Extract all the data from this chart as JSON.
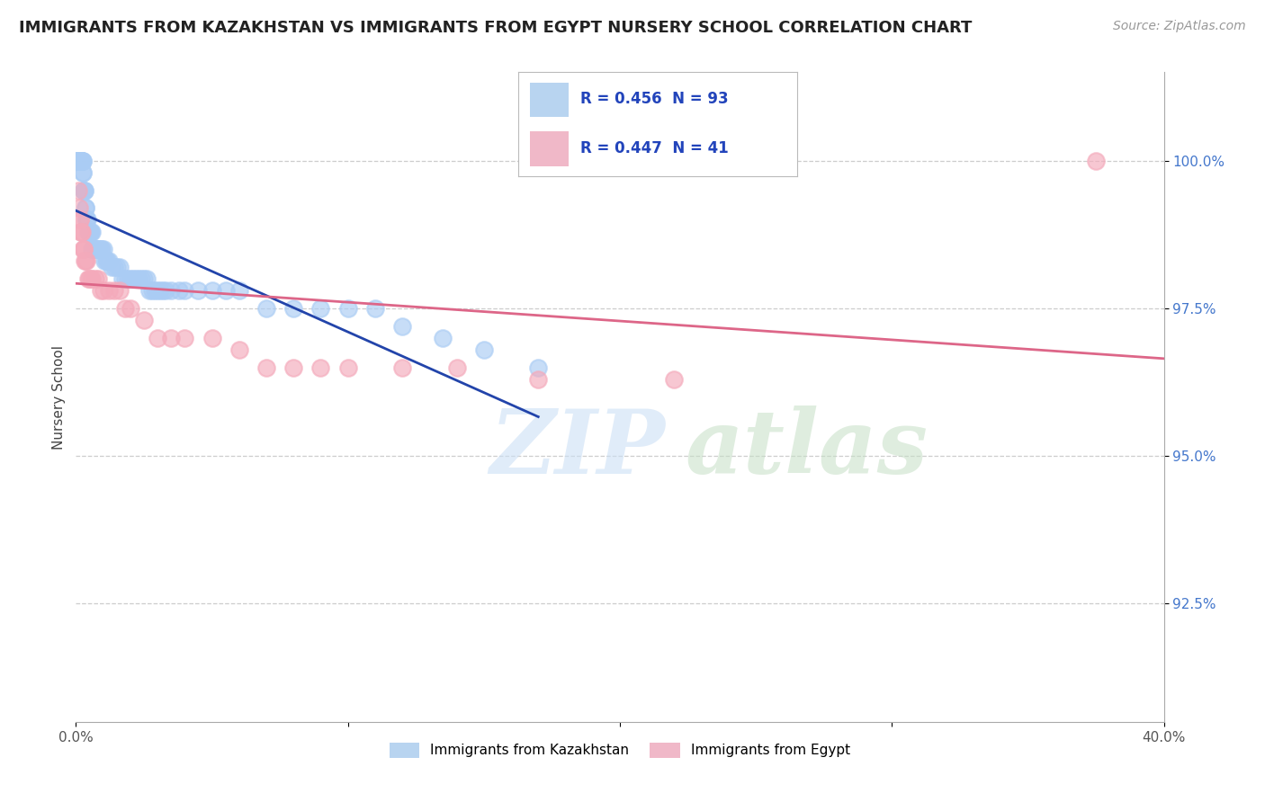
{
  "title": "IMMIGRANTS FROM KAZAKHSTAN VS IMMIGRANTS FROM EGYPT NURSERY SCHOOL CORRELATION CHART",
  "source": "Source: ZipAtlas.com",
  "ylabel": "Nursery School",
  "xlim": [
    0.0,
    40.0
  ],
  "ylim": [
    90.5,
    101.5
  ],
  "yticks": [
    92.5,
    95.0,
    97.5,
    100.0
  ],
  "ytick_labels": [
    "92.5%",
    "95.0%",
    "97.5%",
    "100.0%"
  ],
  "R_kaz": 0.456,
  "N_kaz": 93,
  "R_egy": 0.447,
  "N_egy": 41,
  "color_kaz": "#aaccf4",
  "color_egy": "#f4aabb",
  "line_color_kaz": "#2244aa",
  "line_color_egy": "#dd6688",
  "legend_color_kaz": "#b8d4f0",
  "legend_color_egy": "#f0b8c8",
  "background_color": "#ffffff",
  "grid_color": "#c8c8c8",
  "kaz_x": [
    0.05,
    0.07,
    0.08,
    0.1,
    0.1,
    0.11,
    0.12,
    0.12,
    0.13,
    0.14,
    0.15,
    0.15,
    0.16,
    0.17,
    0.18,
    0.19,
    0.2,
    0.2,
    0.21,
    0.22,
    0.23,
    0.24,
    0.25,
    0.25,
    0.26,
    0.28,
    0.3,
    0.3,
    0.32,
    0.33,
    0.35,
    0.36,
    0.38,
    0.4,
    0.42,
    0.45,
    0.48,
    0.5,
    0.52,
    0.55,
    0.58,
    0.6,
    0.62,
    0.65,
    0.68,
    0.7,
    0.75,
    0.8,
    0.85,
    0.9,
    0.95,
    1.0,
    1.05,
    1.1,
    1.15,
    1.2,
    1.3,
    1.4,
    1.5,
    1.6,
    1.7,
    1.8,
    1.9,
    2.0,
    2.1,
    2.2,
    2.3,
    2.4,
    2.5,
    2.6,
    2.7,
    2.8,
    2.9,
    3.0,
    3.1,
    3.2,
    3.3,
    3.5,
    3.8,
    4.0,
    4.5,
    5.0,
    5.5,
    6.0,
    7.0,
    8.0,
    9.0,
    10.0,
    11.0,
    12.0,
    13.5,
    15.0,
    17.0
  ],
  "kaz_y": [
    100.0,
    100.0,
    100.0,
    100.0,
    100.0,
    100.0,
    100.0,
    100.0,
    100.0,
    100.0,
    100.0,
    100.0,
    100.0,
    100.0,
    100.0,
    100.0,
    100.0,
    100.0,
    100.0,
    100.0,
    100.0,
    100.0,
    100.0,
    99.8,
    99.8,
    99.5,
    99.5,
    99.5,
    99.5,
    99.5,
    99.2,
    99.2,
    99.0,
    99.0,
    99.0,
    98.8,
    98.8,
    98.8,
    98.8,
    98.8,
    98.8,
    98.5,
    98.5,
    98.5,
    98.5,
    98.5,
    98.5,
    98.5,
    98.5,
    98.5,
    98.5,
    98.5,
    98.3,
    98.3,
    98.3,
    98.3,
    98.2,
    98.2,
    98.2,
    98.2,
    98.0,
    98.0,
    98.0,
    98.0,
    98.0,
    98.0,
    98.0,
    98.0,
    98.0,
    98.0,
    97.8,
    97.8,
    97.8,
    97.8,
    97.8,
    97.8,
    97.8,
    97.8,
    97.8,
    97.8,
    97.8,
    97.8,
    97.8,
    97.8,
    97.5,
    97.5,
    97.5,
    97.5,
    97.5,
    97.2,
    97.0,
    96.8,
    96.5
  ],
  "egy_x": [
    0.1,
    0.12,
    0.14,
    0.16,
    0.18,
    0.2,
    0.22,
    0.25,
    0.28,
    0.3,
    0.33,
    0.36,
    0.4,
    0.45,
    0.5,
    0.55,
    0.6,
    0.7,
    0.8,
    0.9,
    1.0,
    1.2,
    1.4,
    1.6,
    1.8,
    2.0,
    2.5,
    3.0,
    3.5,
    4.0,
    5.0,
    6.0,
    7.0,
    8.0,
    9.0,
    10.0,
    12.0,
    14.0,
    17.0,
    22.0,
    37.5
  ],
  "egy_y": [
    99.5,
    99.2,
    99.0,
    99.0,
    98.8,
    98.8,
    98.8,
    98.5,
    98.5,
    98.5,
    98.3,
    98.3,
    98.3,
    98.0,
    98.0,
    98.0,
    98.0,
    98.0,
    98.0,
    97.8,
    97.8,
    97.8,
    97.8,
    97.8,
    97.5,
    97.5,
    97.3,
    97.0,
    97.0,
    97.0,
    97.0,
    96.8,
    96.5,
    96.5,
    96.5,
    96.5,
    96.5,
    96.5,
    96.3,
    96.3,
    100.0
  ]
}
